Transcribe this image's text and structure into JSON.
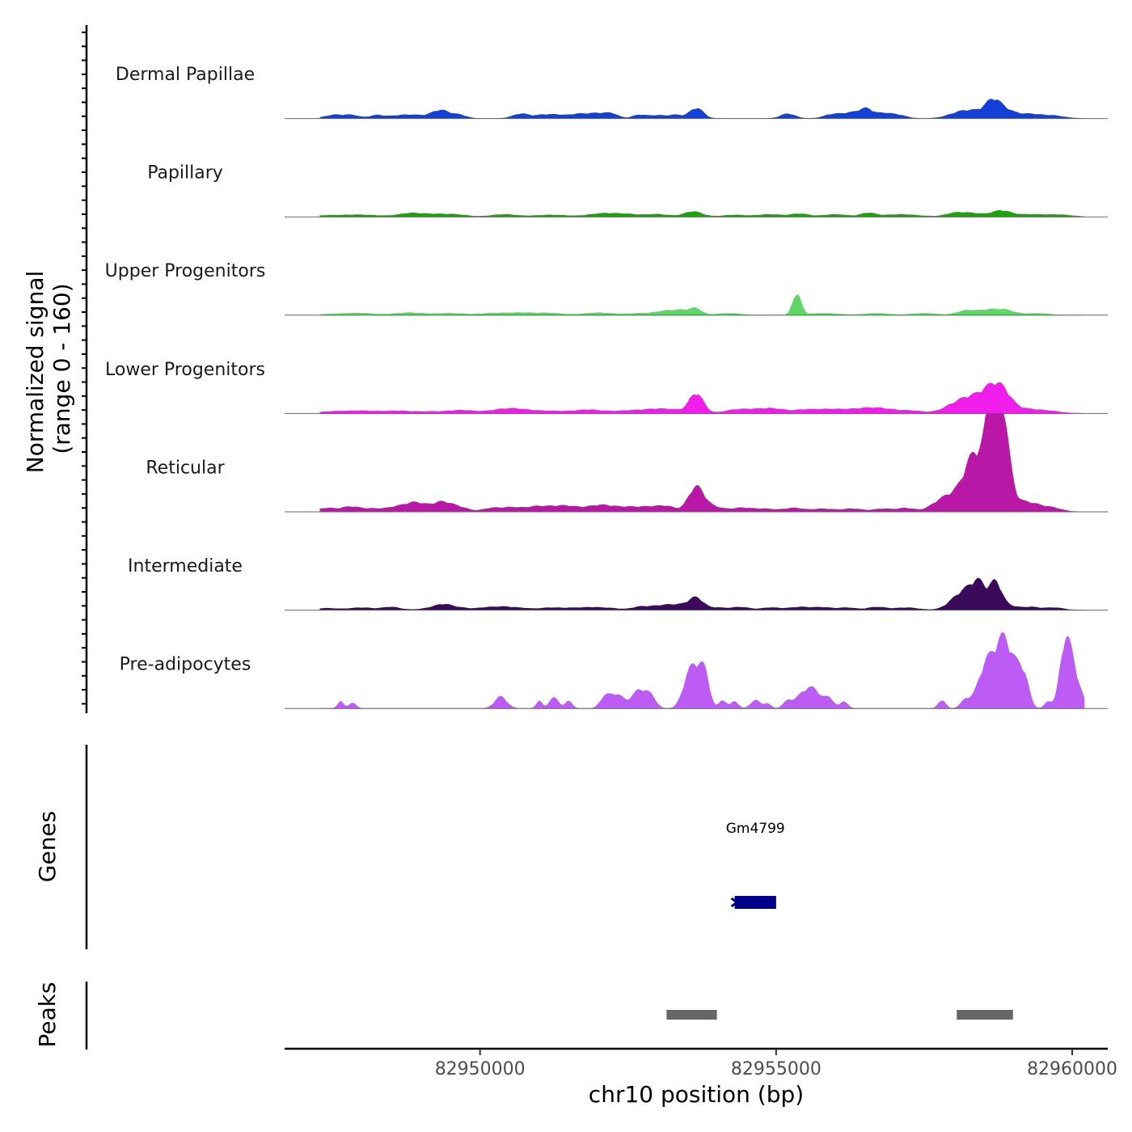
{
  "chart_data": {
    "type": "area",
    "title": "",
    "ylabel": "Normalized signal",
    "ylabel_range": "(range 0 - 160)",
    "xlabel": "chr10 position (bp)",
    "xlim": [
      82946700,
      82960600
    ],
    "ylim": [
      0,
      160
    ],
    "x_ticks": [
      {
        "value": 82950000,
        "label": "82950000"
      },
      {
        "value": 82955000,
        "label": "82955000"
      },
      {
        "value": 82960000,
        "label": "82960000"
      }
    ],
    "tracks": [
      {
        "name": "Dermal Papillae",
        "color": "#1240D8",
        "peaks": [
          [
            82947550,
            6,
            160
          ],
          [
            82947850,
            5,
            120
          ],
          [
            82948250,
            5,
            120
          ],
          [
            82948650,
            5,
            200
          ],
          [
            82948950,
            4,
            160
          ],
          [
            82949250,
            8,
            120
          ],
          [
            82949400,
            9,
            120
          ],
          [
            82949650,
            6,
            120
          ],
          [
            82950700,
            8,
            140
          ],
          [
            82951050,
            5,
            120
          ],
          [
            82951300,
            6,
            140
          ],
          [
            82951600,
            5,
            120
          ],
          [
            82951850,
            7,
            160
          ],
          [
            82952100,
            6,
            140
          ],
          [
            82952250,
            5,
            100
          ],
          [
            82952700,
            6,
            120
          ],
          [
            82953000,
            5,
            120
          ],
          [
            82953300,
            6,
            120
          ],
          [
            82953600,
            9,
            100
          ],
          [
            82953700,
            11,
            100
          ],
          [
            82955200,
            8,
            120
          ],
          [
            82955950,
            7,
            140
          ],
          [
            82956200,
            6,
            120
          ],
          [
            82956400,
            9,
            120
          ],
          [
            82956550,
            12,
            100
          ],
          [
            82956800,
            8,
            120
          ],
          [
            82957050,
            6,
            140
          ],
          [
            82958100,
            9,
            200
          ],
          [
            82958400,
            10,
            200
          ],
          [
            82958650,
            22,
            120
          ],
          [
            82958800,
            12,
            140
          ],
          [
            82959000,
            7,
            150
          ],
          [
            82959300,
            6,
            150
          ],
          [
            82959650,
            5,
            200
          ]
        ]
      },
      {
        "name": "Papillary",
        "color": "#1BA40A",
        "peaks": [
          [
            82947400,
            2,
            300
          ],
          [
            82948000,
            3,
            300
          ],
          [
            82948800,
            5,
            200
          ],
          [
            82949200,
            4,
            250
          ],
          [
            82949600,
            3,
            200
          ],
          [
            82950400,
            4,
            200
          ],
          [
            82951200,
            3,
            300
          ],
          [
            82952000,
            4,
            200
          ],
          [
            82952400,
            5,
            250
          ],
          [
            82953000,
            4,
            200
          ],
          [
            82953600,
            9,
            150
          ],
          [
            82954300,
            3,
            200
          ],
          [
            82954900,
            4,
            200
          ],
          [
            82955400,
            5,
            150
          ],
          [
            82956000,
            4,
            200
          ],
          [
            82956550,
            6,
            120
          ],
          [
            82957100,
            4,
            300
          ],
          [
            82958000,
            5,
            150
          ],
          [
            82958300,
            6,
            200
          ],
          [
            82958800,
            10,
            160
          ],
          [
            82959300,
            4,
            250
          ],
          [
            82959800,
            3,
            200
          ]
        ]
      },
      {
        "name": "Upper Progenitors",
        "color": "#5ED766",
        "peaks": [
          [
            82947600,
            2,
            250
          ],
          [
            82948000,
            3,
            200
          ],
          [
            82948800,
            4,
            250
          ],
          [
            82949500,
            3,
            250
          ],
          [
            82950200,
            3,
            200
          ],
          [
            82950700,
            4,
            250
          ],
          [
            82951200,
            3,
            200
          ],
          [
            82952000,
            4,
            250
          ],
          [
            82952700,
            3,
            200
          ],
          [
            82953100,
            6,
            150
          ],
          [
            82953400,
            8,
            150
          ],
          [
            82953650,
            10,
            100
          ],
          [
            82954200,
            3,
            200
          ],
          [
            82955350,
            36,
            70
          ],
          [
            82955800,
            3,
            250
          ],
          [
            82956700,
            3,
            200
          ],
          [
            82957500,
            3,
            200
          ],
          [
            82958200,
            7,
            150
          ],
          [
            82958600,
            9,
            200
          ],
          [
            82958900,
            6,
            150
          ],
          [
            82959400,
            3,
            200
          ]
        ]
      },
      {
        "name": "Lower Progenitors",
        "color": "#F01EEA",
        "peaks": [
          [
            82947500,
            3,
            250
          ],
          [
            82948000,
            4,
            250
          ],
          [
            82948600,
            4,
            250
          ],
          [
            82949200,
            3,
            250
          ],
          [
            82949700,
            5,
            200
          ],
          [
            82950300,
            4,
            250
          ],
          [
            82950600,
            6,
            250
          ],
          [
            82951200,
            4,
            300
          ],
          [
            82951800,
            5,
            200
          ],
          [
            82952200,
            3,
            250
          ],
          [
            82952600,
            4,
            200
          ],
          [
            82953000,
            7,
            200
          ],
          [
            82953300,
            4,
            150
          ],
          [
            82953650,
            34,
            120
          ],
          [
            82954300,
            5,
            200
          ],
          [
            82954700,
            6,
            250
          ],
          [
            82955000,
            5,
            200
          ],
          [
            82955500,
            6,
            200
          ],
          [
            82955900,
            5,
            200
          ],
          [
            82956400,
            7,
            300
          ],
          [
            82956800,
            6,
            250
          ],
          [
            82957300,
            4,
            200
          ],
          [
            82958000,
            12,
            200
          ],
          [
            82958300,
            22,
            200
          ],
          [
            82958650,
            38,
            180
          ],
          [
            82958850,
            22,
            150
          ],
          [
            82959200,
            7,
            200
          ],
          [
            82959600,
            4,
            200
          ]
        ]
      },
      {
        "name": "Reticular",
        "color": "#B818A5",
        "peaks": [
          [
            82947400,
            6,
            140
          ],
          [
            82947800,
            8,
            160
          ],
          [
            82948200,
            5,
            200
          ],
          [
            82948600,
            7,
            160
          ],
          [
            82948850,
            9,
            150
          ],
          [
            82949000,
            8,
            150
          ],
          [
            82949350,
            16,
            160
          ],
          [
            82949650,
            7,
            150
          ],
          [
            82950200,
            6,
            160
          ],
          [
            82950550,
            7,
            160
          ],
          [
            82950900,
            6,
            150
          ],
          [
            82951200,
            8,
            200
          ],
          [
            82951500,
            7,
            160
          ],
          [
            82951800,
            5,
            150
          ],
          [
            82952050,
            9,
            160
          ],
          [
            82952300,
            5,
            160
          ],
          [
            82952550,
            6,
            160
          ],
          [
            82952850,
            7,
            160
          ],
          [
            82953150,
            9,
            150
          ],
          [
            82953650,
            42,
            130
          ],
          [
            82953950,
            8,
            160
          ],
          [
            82954400,
            6,
            160
          ],
          [
            82954800,
            5,
            200
          ],
          [
            82955300,
            6,
            160
          ],
          [
            82955800,
            5,
            200
          ],
          [
            82956300,
            5,
            160
          ],
          [
            82956800,
            5,
            160
          ],
          [
            82957200,
            6,
            150
          ],
          [
            82957700,
            6,
            150
          ],
          [
            82957900,
            12,
            200
          ],
          [
            82958100,
            22,
            220
          ],
          [
            82958300,
            50,
            140
          ],
          [
            82958500,
            60,
            170
          ],
          [
            82958650,
            108,
            90
          ],
          [
            82958700,
            70,
            130
          ],
          [
            82958800,
            92,
            90
          ],
          [
            82958900,
            50,
            100
          ],
          [
            82959100,
            15,
            200
          ],
          [
            82959400,
            8,
            180
          ],
          [
            82959700,
            5,
            150
          ]
        ]
      },
      {
        "name": "Intermediate",
        "color": "#3C0A5A",
        "peaks": [
          [
            82947400,
            3,
            200
          ],
          [
            82948000,
            4,
            200
          ],
          [
            82948500,
            5,
            150
          ],
          [
            82949200,
            3,
            200
          ],
          [
            82949400,
            8,
            150
          ],
          [
            82949700,
            3,
            150
          ],
          [
            82950100,
            4,
            150
          ],
          [
            82950400,
            5,
            150
          ],
          [
            82950700,
            3,
            150
          ],
          [
            82951200,
            4,
            200
          ],
          [
            82951600,
            3,
            150
          ],
          [
            82951900,
            4,
            150
          ],
          [
            82952200,
            3,
            150
          ],
          [
            82952700,
            5,
            150
          ],
          [
            82953100,
            8,
            200
          ],
          [
            82953400,
            6,
            150
          ],
          [
            82953650,
            20,
            120
          ],
          [
            82954000,
            4,
            150
          ],
          [
            82954400,
            5,
            150
          ],
          [
            82954900,
            4,
            150
          ],
          [
            82955400,
            5,
            200
          ],
          [
            82955800,
            4,
            150
          ],
          [
            82956200,
            4,
            150
          ],
          [
            82956700,
            5,
            150
          ],
          [
            82957200,
            4,
            200
          ],
          [
            82958050,
            18,
            160
          ],
          [
            82958300,
            32,
            150
          ],
          [
            82958450,
            28,
            100
          ],
          [
            82958700,
            45,
            100
          ],
          [
            82958900,
            8,
            150
          ],
          [
            82959300,
            5,
            150
          ],
          [
            82959700,
            4,
            150
          ]
        ]
      },
      {
        "name": "Pre-adipocytes",
        "color": "#BD5BF5",
        "peaks": [
          [
            82947650,
            12,
            50
          ],
          [
            82947850,
            9,
            60
          ],
          [
            82950350,
            20,
            100
          ],
          [
            82951000,
            12,
            50
          ],
          [
            82951250,
            18,
            80
          ],
          [
            82951500,
            12,
            60
          ],
          [
            82952100,
            16,
            80
          ],
          [
            82952300,
            24,
            120
          ],
          [
            82952700,
            32,
            130
          ],
          [
            82952900,
            14,
            80
          ],
          [
            82953500,
            40,
            100
          ],
          [
            82953650,
            56,
            100
          ],
          [
            82953800,
            50,
            80
          ],
          [
            82954100,
            14,
            60
          ],
          [
            82954300,
            12,
            60
          ],
          [
            82954650,
            14,
            80
          ],
          [
            82954850,
            8,
            60
          ],
          [
            82955200,
            12,
            80
          ],
          [
            82955450,
            22,
            120
          ],
          [
            82955650,
            28,
            120
          ],
          [
            82955900,
            16,
            80
          ],
          [
            82956150,
            12,
            60
          ],
          [
            82957800,
            14,
            60
          ],
          [
            82958200,
            14,
            80
          ],
          [
            82958500,
            40,
            130
          ],
          [
            82958700,
            72,
            160
          ],
          [
            82958850,
            60,
            100
          ],
          [
            82959050,
            64,
            120
          ],
          [
            82959200,
            32,
            80
          ],
          [
            82959600,
            12,
            60
          ],
          [
            82959850,
            58,
            80
          ],
          [
            82959950,
            80,
            100
          ],
          [
            82960100,
            24,
            100
          ]
        ]
      }
    ],
    "genes": [
      {
        "name": "Gm4799",
        "start": 82954300,
        "end": 82955000,
        "strand": "-",
        "color": "#00008B"
      }
    ],
    "peaks": [
      {
        "start": 82953150,
        "end": 82954000,
        "color": "#666666"
      },
      {
        "start": 82958050,
        "end": 82959000,
        "color": "#666666"
      }
    ],
    "panel_titles": {
      "genes": "Genes",
      "peaks": "Peaks"
    }
  }
}
